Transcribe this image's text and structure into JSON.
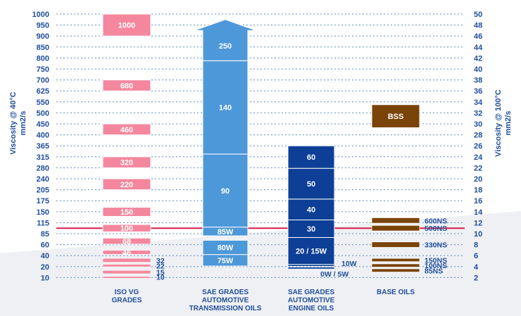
{
  "chart_data": {
    "type": "bar",
    "left_axis": {
      "label_line1": "Viscosity @ 40°C",
      "label_line2": "mm2/s",
      "ticks": [
        "1000",
        "950",
        "900",
        "850",
        "800",
        "750",
        "700",
        "625",
        "550",
        "500",
        "450",
        "400",
        "365",
        "315",
        "280",
        "240",
        "205",
        "175",
        "150",
        "115",
        "85",
        "60",
        "40",
        "20",
        "10"
      ]
    },
    "right_axis": {
      "label_line1": "Viscosity @ 100°C",
      "label_line2": "mm2/s",
      "ticks": [
        "50",
        "48",
        "46",
        "44",
        "42",
        "40",
        "38",
        "36",
        "34",
        "32",
        "30",
        "28",
        "26",
        "24",
        "22",
        "20",
        "18",
        "16",
        "14",
        "12",
        "10",
        "8",
        "6",
        "4",
        "2"
      ]
    },
    "categories": [
      {
        "lines": [
          "ISO VG",
          "GRADES"
        ]
      },
      {
        "lines": [
          "SAE GRADES",
          "AUTOMOTIVE",
          "TRANSMISSION OILS"
        ]
      },
      {
        "lines": [
          "SAE GRADES",
          "AUTOMOTIVE",
          "ENGINE OILS"
        ]
      },
      {
        "lines": [
          "BASE OILS"
        ]
      }
    ],
    "iso_vg": [
      {
        "label": "1000",
        "from": 900,
        "to": 1000
      },
      {
        "label": "680",
        "from": 625,
        "to": 700
      },
      {
        "label": "460",
        "from": 400,
        "to": 450
      },
      {
        "label": "320",
        "from": 280,
        "to": 315
      },
      {
        "label": "220",
        "from": 205,
        "to": 240
      },
      {
        "label": "150",
        "from": 135,
        "to": 160
      },
      {
        "label": "100",
        "from": 90,
        "to": 110
      },
      {
        "label": "68",
        "from": 61,
        "to": 75
      },
      {
        "label": "46",
        "from": 42,
        "to": 50
      },
      {
        "label": "32",
        "from": 28,
        "to": 35,
        "side": true
      },
      {
        "label": "22",
        "from": 19.8,
        "to": 24.2,
        "side": true
      },
      {
        "label": "15",
        "from": 13.5,
        "to": 16.5,
        "side": true
      },
      {
        "label": "10",
        "from": 9,
        "to": 11,
        "side": true
      }
    ],
    "transmission_oils": [
      {
        "label": "75W",
        "from": 4.1,
        "to": 6.2
      },
      {
        "label": "80W",
        "from": 6.2,
        "to": 8.8
      },
      {
        "label": "85W",
        "from": 9.6,
        "to": 11.2
      },
      {
        "label": "90",
        "from": 11.2,
        "to": 24.5
      },
      {
        "label": "140",
        "from": 24.5,
        "to": 41.5
      },
      {
        "label": "250",
        "from": 41.5,
        "to": 47
      }
    ],
    "engine_oils": [
      {
        "label": "0W / 5W",
        "from": 3.6,
        "to": 3.9,
        "side": true
      },
      {
        "label": "10W",
        "from": 4.1,
        "to": 4.4,
        "side": true
      },
      {
        "label": "20 / 15W",
        "from": 4.4,
        "to": 9.3
      },
      {
        "label": "30",
        "from": 9.3,
        "to": 12.5
      },
      {
        "label": "40",
        "from": 12.5,
        "to": 16.3
      },
      {
        "label": "50",
        "from": 16.3,
        "to": 21.9
      },
      {
        "label": "60",
        "from": 21.9,
        "to": 26
      }
    ],
    "base_oils": [
      {
        "label": "BSS",
        "from": 29.3,
        "to": 33.5
      },
      {
        "label": "600NS",
        "from": 11.9,
        "to": 12.9,
        "side": true
      },
      {
        "label": "500NS",
        "from": 10.5,
        "to": 11.5,
        "side": true
      },
      {
        "label": "330NS",
        "from": 7.5,
        "to": 8.5,
        "side": true
      },
      {
        "label": "150NS",
        "from": 4.9,
        "to": 5.5,
        "side": true
      },
      {
        "label": "100NS",
        "from": 3.9,
        "to": 4.5,
        "side": true
      },
      {
        "label": "85NS",
        "from": 3.0,
        "to": 3.6,
        "side": true
      }
    ],
    "reference_line": 100,
    "colors": {
      "iso": "#f4879e",
      "transmission": "#4d98d9",
      "engine": "#0d3f96",
      "base": "#7a4307",
      "reference": "#d81b45",
      "text": "#1f4e9c",
      "grid": "#5a8bd0"
    }
  }
}
